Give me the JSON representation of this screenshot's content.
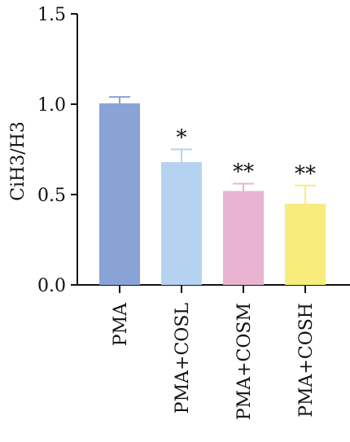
{
  "chart_data": {
    "type": "bar",
    "title": "",
    "xlabel": "",
    "ylabel": "CiH3/H3",
    "ylim": [
      0,
      1.5
    ],
    "yticks": [
      0.0,
      0.5,
      1.0,
      1.5
    ],
    "ytick_labels": [
      "0.0",
      "0.5",
      "1.0",
      "1.5"
    ],
    "grid": false,
    "legend": "none",
    "categories": [
      "PMA",
      "PMA+COSL",
      "PMA+COSM",
      "PMA+COSH"
    ],
    "values": [
      1.0,
      0.675,
      0.515,
      0.445
    ],
    "error_plus": [
      0.04,
      0.075,
      0.045,
      0.105
    ],
    "annotations": [
      "",
      "*",
      "**",
      "**"
    ],
    "colors": [
      "#8aa3d6",
      "#b5d3f0",
      "#e8b4d2",
      "#f8ec7c"
    ]
  }
}
